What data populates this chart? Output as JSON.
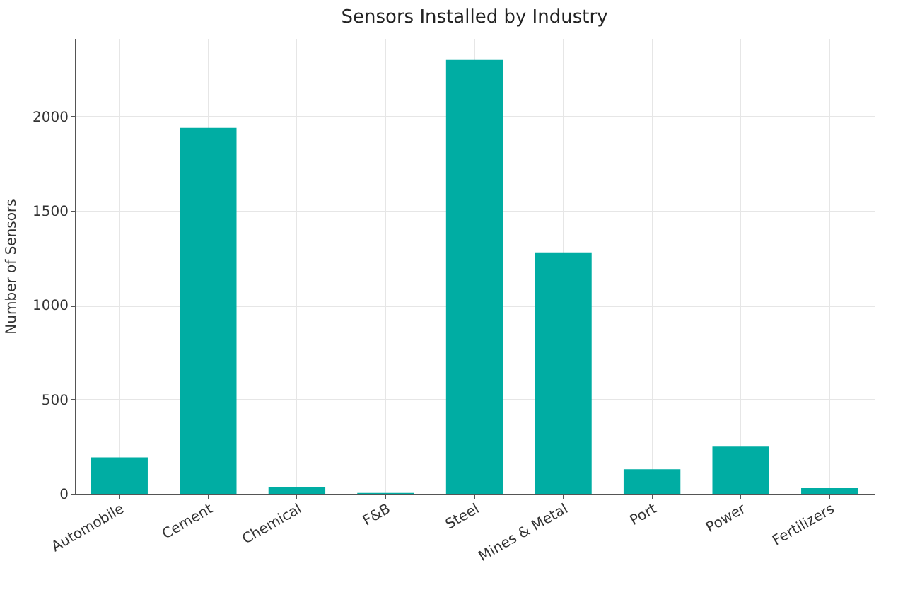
{
  "chart_data": {
    "type": "bar",
    "title": "Sensors Installed by Industry",
    "ylabel": "Number of Sensors",
    "categories": [
      "Automobile",
      "Cement",
      "Chemical",
      "F&B",
      "Steel",
      "Mines & Metal",
      "Port",
      "Power",
      "Fertilizers"
    ],
    "values": [
      193,
      1940,
      35,
      5,
      2300,
      1280,
      130,
      250,
      30
    ],
    "color": "#00ada3",
    "ylim": [
      0,
      2415
    ],
    "yticks": [
      0,
      500,
      1000,
      1500,
      2000
    ],
    "grid": true
  }
}
